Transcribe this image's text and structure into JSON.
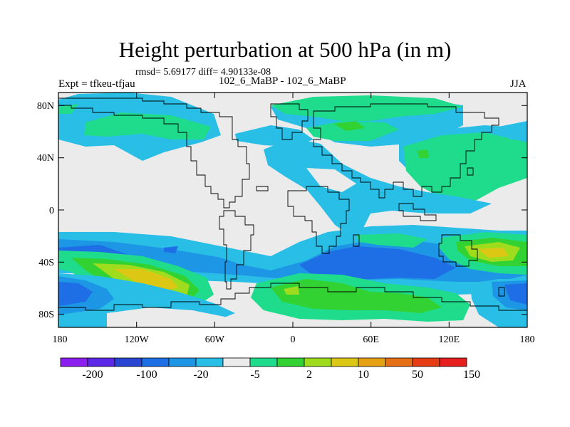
{
  "header": {
    "title": "Height perturbation at 500 hPa (in m)",
    "stats": "rmsd= 5.69177 diff= 4.90133e-08",
    "experiment": "Expt = tfkeu-tfjau",
    "comparison": "102_6_MaBP - 102_6_MaBP",
    "season": "JJA"
  },
  "axes": {
    "lat_labels": [
      "80N",
      "40N",
      "0",
      "40S",
      "80S"
    ],
    "lon_labels": [
      "180",
      "120W",
      "60W",
      "0",
      "60E",
      "120E",
      "180"
    ]
  },
  "colorbar": {
    "colors": [
      "#8c1ef0",
      "#5a28e6",
      "#2846d2",
      "#1e6ee6",
      "#1e96e6",
      "#28bee6",
      "#ebebeb",
      "#1edc8c",
      "#32d232",
      "#a0dc1e",
      "#dcc814",
      "#e6a014",
      "#e66e14",
      "#e63c14",
      "#e61e1e"
    ],
    "labels": [
      "-200",
      "-100",
      "-20",
      "-5",
      "2",
      "10",
      "50",
      "150"
    ]
  },
  "palette": {
    "neutral": "#ebebeb",
    "light_blue": "#28bee6",
    "mid_blue": "#1e96e6",
    "blue": "#1e6ee6",
    "light_green": "#1edc8c",
    "green": "#32d232",
    "yellow_green": "#a0dc1e",
    "yellow": "#dcc814",
    "coast": "#000000"
  }
}
